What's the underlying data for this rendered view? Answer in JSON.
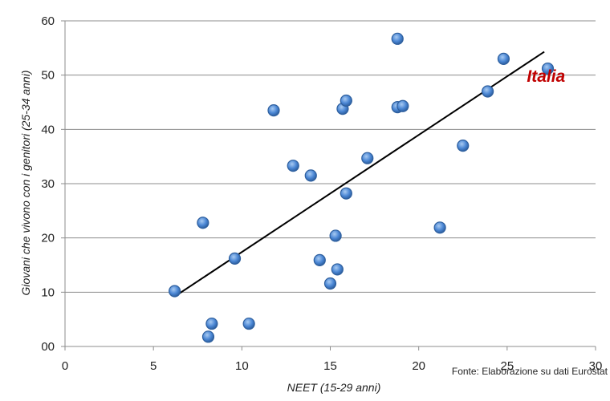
{
  "chart_data": {
    "type": "scatter",
    "title": "",
    "xlabel": "NEET (15-29 anni)",
    "ylabel": "Giovani che vivono con i genitori (25-34 anni)",
    "xlim": [
      0,
      30
    ],
    "ylim": [
      0,
      60
    ],
    "x_ticks": [
      0,
      5,
      10,
      15,
      20,
      25,
      30
    ],
    "y_ticks": [
      0,
      10,
      20,
      30,
      40,
      50,
      60
    ],
    "x_tick_labels": [
      "0",
      "5",
      "10",
      "15",
      "20",
      "25",
      "30"
    ],
    "y_tick_labels": [
      "00",
      "10",
      "20",
      "30",
      "40",
      "50",
      "60"
    ],
    "grid": "horizontal",
    "marker_color": "#4a86d4",
    "marker_edge_color": "#2e5f9e",
    "series": [
      {
        "points": [
          [
            6.2,
            10.2
          ],
          [
            7.8,
            22.8
          ],
          [
            8.1,
            1.8
          ],
          [
            8.3,
            4.2
          ],
          [
            9.6,
            16.2
          ],
          [
            10.4,
            4.2
          ],
          [
            11.8,
            43.5
          ],
          [
            12.9,
            33.3
          ],
          [
            13.9,
            31.5
          ],
          [
            14.4,
            15.9
          ],
          [
            15.0,
            11.6
          ],
          [
            15.3,
            20.4
          ],
          [
            15.4,
            14.2
          ],
          [
            15.7,
            43.8
          ],
          [
            15.9,
            45.3
          ],
          [
            15.9,
            28.2
          ],
          [
            17.1,
            34.7
          ],
          [
            18.8,
            56.7
          ],
          [
            18.8,
            44.1
          ],
          [
            19.1,
            44.3
          ],
          [
            21.2,
            21.9
          ],
          [
            22.5,
            37.0
          ],
          [
            23.9,
            47.0
          ],
          [
            24.8,
            53.0
          ],
          [
            27.3,
            51.2
          ]
        ]
      }
    ],
    "trendline": {
      "x": [
        6.2,
        27.1
      ],
      "y": [
        9.2,
        54.3
      ],
      "color": "#000000"
    },
    "annotations": [
      {
        "text": "Italia",
        "x": 27.2,
        "y": 48.8,
        "color": "#c00000"
      }
    ],
    "source_note": "Fonte: Elaborazione su dati Eurostat"
  }
}
